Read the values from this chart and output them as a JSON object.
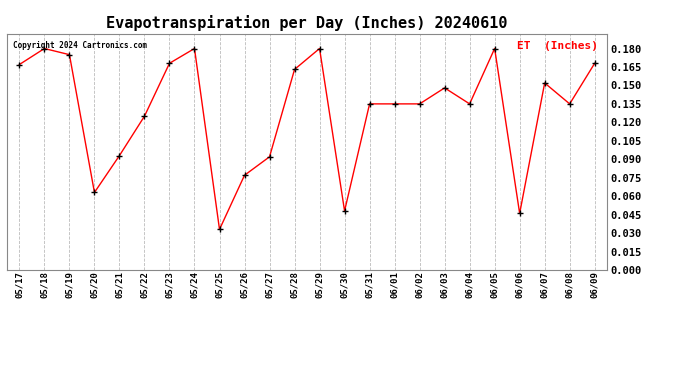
{
  "title": "Evapotranspiration per Day (Inches) 20240610",
  "legend_label": "ET  (Inches)",
  "copyright": "Copyright 2024 Cartronics.com",
  "line_color": "red",
  "marker_color": "black",
  "background_color": "#ffffff",
  "grid_color": "#bbbbbb",
  "ylim": [
    0.0,
    0.192
  ],
  "yticks": [
    0.0,
    0.015,
    0.03,
    0.045,
    0.06,
    0.075,
    0.09,
    0.105,
    0.12,
    0.135,
    0.15,
    0.165,
    0.18
  ],
  "dates": [
    "05/17",
    "05/18",
    "05/19",
    "05/20",
    "05/21",
    "05/22",
    "05/23",
    "05/24",
    "05/25",
    "05/26",
    "05/27",
    "05/28",
    "05/29",
    "05/30",
    "05/31",
    "06/01",
    "06/02",
    "06/03",
    "06/04",
    "06/05",
    "06/06",
    "06/07",
    "06/08",
    "06/09"
  ],
  "values": [
    0.167,
    0.18,
    0.175,
    0.063,
    0.093,
    0.125,
    0.168,
    0.18,
    0.033,
    0.077,
    0.092,
    0.163,
    0.18,
    0.048,
    0.135,
    0.135,
    0.135,
    0.148,
    0.135,
    0.18,
    0.046,
    0.152,
    0.135,
    0.168
  ]
}
